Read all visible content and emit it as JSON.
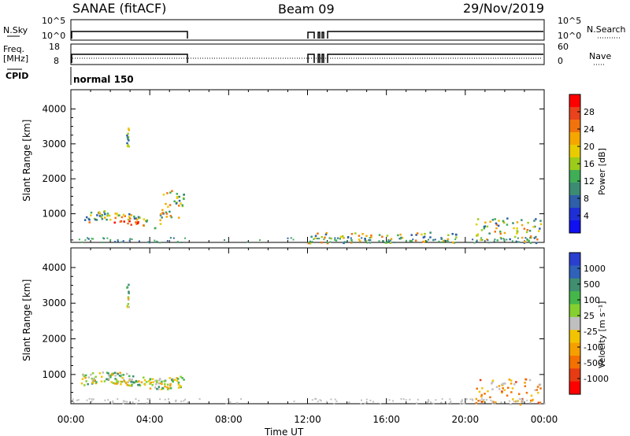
{
  "header": {
    "title": "SANAE (fitACF)",
    "beam": "Beam 09",
    "date": "29/Nov/2019"
  },
  "panels": {
    "nsky": {
      "left_label": "N.Sky",
      "left_ticks": [
        "10^5",
        "10^0"
      ],
      "right_ticks": [
        "10^5",
        "10^0"
      ],
      "right_label": "N.Search"
    },
    "freq": {
      "left_label_1": "Freq.",
      "left_label_2": "[MHz]",
      "left_ticks": [
        "18",
        "8"
      ],
      "right_ticks": [
        "60",
        "0"
      ],
      "right_label": "Nave"
    },
    "cpid": {
      "left_label": "CPID",
      "text": "normal 150"
    }
  },
  "colorbars": {
    "power": {
      "label": "Power [dB]",
      "ticks": [
        "28",
        "24",
        "20",
        "16",
        "12",
        "8",
        "4"
      ],
      "colors": [
        "#ff0000",
        "#e8431c",
        "#f2730d",
        "#f5a700",
        "#e8cc00",
        "#9ccc1a",
        "#3fae57",
        "#3c8c74",
        "#2e5fa8",
        "#1e2fd6",
        "#1010f0"
      ]
    },
    "velocity": {
      "label": "Velocity [m s⁻¹]",
      "ticks": [
        "1000",
        "500",
        "100",
        "25",
        "-25",
        "-100",
        "-500",
        "-1000"
      ],
      "colors": [
        "#2a3fd0",
        "#2f62b8",
        "#3f8f70",
        "#45b64a",
        "#85d030",
        "#bfbfbf",
        "#f2c400",
        "#f5a000",
        "#f47000",
        "#e63b13",
        "#ff0000"
      ]
    }
  },
  "axes": {
    "xlabel": "Time UT",
    "ylabel": "Slant Range [km]",
    "x_ticks": [
      "00:00",
      "04:00",
      "08:00",
      "12:00",
      "16:00",
      "20:00",
      "00:00"
    ],
    "y_ticks": [
      "4000",
      "3000",
      "2000",
      "1000"
    ]
  },
  "chart_data": [
    {
      "type": "scatter",
      "title": "Power",
      "xlabel": "Time UT",
      "ylabel": "Slant Range [km]",
      "xlim_hours": [
        0,
        24
      ],
      "ylim_km": [
        180,
        4550
      ],
      "colorbar_ticks": [
        28,
        24,
        20,
        16,
        12,
        8,
        4
      ],
      "clusters": [
        {
          "t": [
            0.5,
            4.6
          ],
          "r": [
            550,
            1150
          ],
          "value": "8-28 dB",
          "note": "strong echo near 03:00"
        },
        {
          "t": [
            4.5,
            5.7
          ],
          "r": [
            900,
            1750
          ],
          "value": "12-20 dB"
        },
        {
          "t": [
            2.8,
            2.9
          ],
          "r": [
            2900,
            3550
          ],
          "value": "16-24 dB"
        },
        {
          "t": [
            20.5,
            23.8
          ],
          "r": [
            180,
            900
          ],
          "value": "8-24 dB"
        },
        {
          "t": [
            12.0,
            20.0
          ],
          "r": [
            180,
            500
          ],
          "value": "8-20 dB"
        }
      ]
    },
    {
      "type": "scatter",
      "title": "Velocity",
      "xlabel": "Time UT",
      "ylabel": "Slant Range [km]",
      "xlim_hours": [
        0,
        24
      ],
      "ylim_km": [
        180,
        4550
      ],
      "colorbar_ticks": [
        1000,
        500,
        100,
        25,
        -25,
        -100,
        -500,
        -1000
      ],
      "clusters": [
        {
          "t": [
            0.5,
            5.7
          ],
          "r": [
            550,
            1750
          ],
          "value": "-100 to 100 m/s"
        },
        {
          "t": [
            2.8,
            2.9
          ],
          "r": [
            2900,
            3550
          ],
          "value": "-100 to 25 m/s"
        },
        {
          "t": [
            20.5,
            23.8
          ],
          "r": [
            180,
            900
          ],
          "value": "-500 to -25 m/s"
        }
      ]
    }
  ]
}
